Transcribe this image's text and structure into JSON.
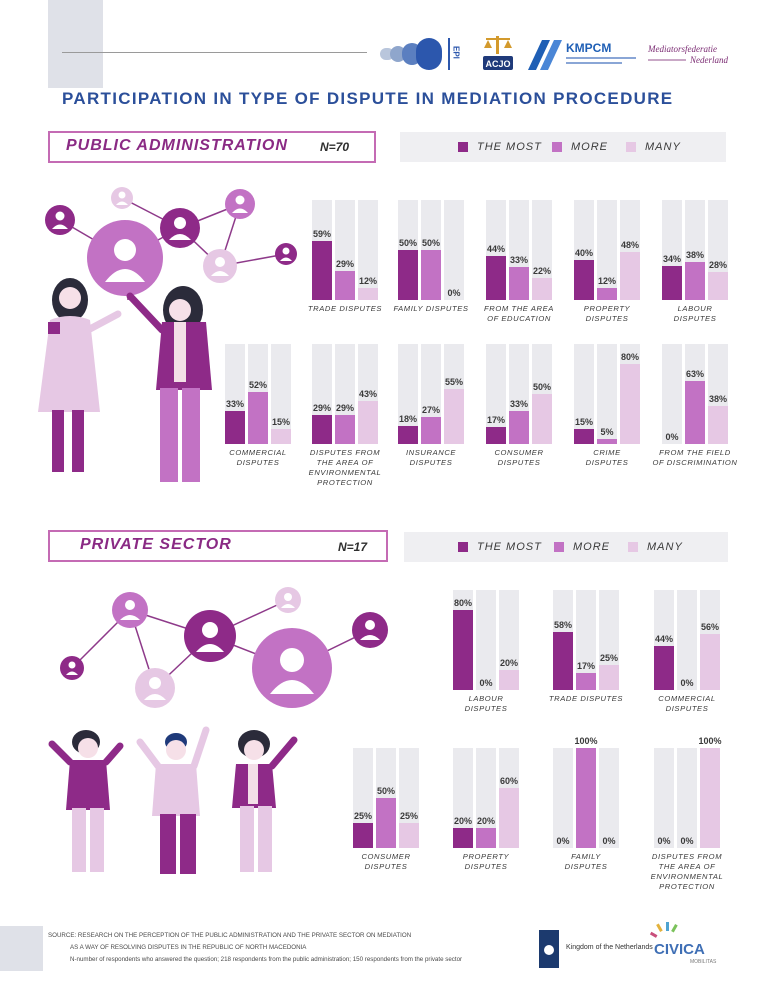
{
  "header": {
    "title": "PARTICIPATION IN TYPE OF DISPUTE IN MEDIATION PROCEDURE",
    "logos": {
      "epi": "EPI",
      "acjo": "ACJO",
      "kmpcm": "KMPCM",
      "mediators_line1": "Mediatorsfederatie",
      "mediators_line2": "Nederland"
    }
  },
  "legend": {
    "the_most": "THE MOST",
    "more": "MORE",
    "many": "MANY"
  },
  "sections": {
    "public": {
      "title": "PUBLIC ADMINISTRATION",
      "n": "N=70"
    },
    "private": {
      "title": "PRIVATE SECTOR",
      "n": "N=17"
    }
  },
  "colors": {
    "the_most": "#8e2a88",
    "more": "#c272c4",
    "many": "#e6c8e4",
    "track": "#eaeaee",
    "title": "#2b4f9a",
    "section": "#8a2a84"
  },
  "chart_data": [
    {
      "type": "bar",
      "section": "public",
      "series_names": [
        "THE MOST",
        "MORE",
        "MANY"
      ],
      "ylim": [
        0,
        100
      ],
      "groups": [
        {
          "label": [
            "TRADE DISPUTES"
          ],
          "values": [
            59,
            29,
            12
          ]
        },
        {
          "label": [
            "FAMILY DISPUTES"
          ],
          "values": [
            50,
            50,
            0
          ]
        },
        {
          "label": [
            "FROM THE AREA",
            "OF EDUCATION"
          ],
          "values": [
            44,
            33,
            22
          ]
        },
        {
          "label": [
            "PROPERTY",
            "DISPUTES"
          ],
          "values": [
            40,
            12,
            48
          ]
        },
        {
          "label": [
            "LABOUR",
            "DISPUTES"
          ],
          "values": [
            34,
            38,
            28
          ]
        },
        {
          "label": [
            "COMMERCIAL",
            "DISPUTES"
          ],
          "values": [
            33,
            52,
            15
          ]
        },
        {
          "label": [
            "DISPUTES FROM",
            "THE AREA OF",
            "ENVIRONMENTAL",
            "PROTECTION"
          ],
          "values": [
            29,
            29,
            43
          ]
        },
        {
          "label": [
            "INSURANCE",
            "DISPUTES"
          ],
          "values": [
            18,
            27,
            55
          ]
        },
        {
          "label": [
            "CONSUMER",
            "DISPUTES"
          ],
          "values": [
            17,
            33,
            50
          ]
        },
        {
          "label": [
            "CRIME",
            "DISPUTES"
          ],
          "values": [
            15,
            5,
            80
          ]
        },
        {
          "label": [
            "FROM THE FIELD",
            "OF DISCRIMINATION"
          ],
          "values": [
            0,
            63,
            38
          ]
        }
      ]
    },
    {
      "type": "bar",
      "section": "private",
      "series_names": [
        "THE MOST",
        "MORE",
        "MANY"
      ],
      "ylim": [
        0,
        100
      ],
      "groups": [
        {
          "label": [
            "LABOUR",
            "DISPUTES"
          ],
          "values": [
            80,
            0,
            20
          ]
        },
        {
          "label": [
            "TRADE DISPUTES"
          ],
          "values": [
            58,
            17,
            25
          ]
        },
        {
          "label": [
            "COMMERCIAL",
            "DISPUTES"
          ],
          "values": [
            44,
            0,
            56
          ]
        },
        {
          "label": [
            "CONSUMER",
            "DISPUTES"
          ],
          "values": [
            25,
            50,
            25
          ]
        },
        {
          "label": [
            "PROPERTY",
            "DISPUTES"
          ],
          "values": [
            20,
            20,
            60
          ]
        },
        {
          "label": [
            "FAMILY",
            "DISPUTES"
          ],
          "values": [
            0,
            100,
            0
          ]
        },
        {
          "label": [
            "DISPUTES FROM",
            "THE AREA OF",
            "ENVIRONMENTAL",
            "PROTECTION"
          ],
          "values": [
            0,
            0,
            100
          ]
        }
      ]
    }
  ],
  "footer": {
    "source_line1": "SOURCE: RESEARCH ON THE PERCEPTION OF THE PUBLIC ADMINISTRATION AND THE PRIVATE SECTOR ON MEDIATION",
    "source_line2": "AS A WAY OF RESOLVING DISPUTES IN THE REPUBLIC OF NORTH MACEDONIA",
    "source_line3": "N-number of respondents who answered the question; 218 respondents from the public administration; 150 respondents from the private sector",
    "netherlands": "Kingdom of the Netherlands",
    "civica": "CIVICA",
    "civica_sub": "MOBILITAS"
  }
}
